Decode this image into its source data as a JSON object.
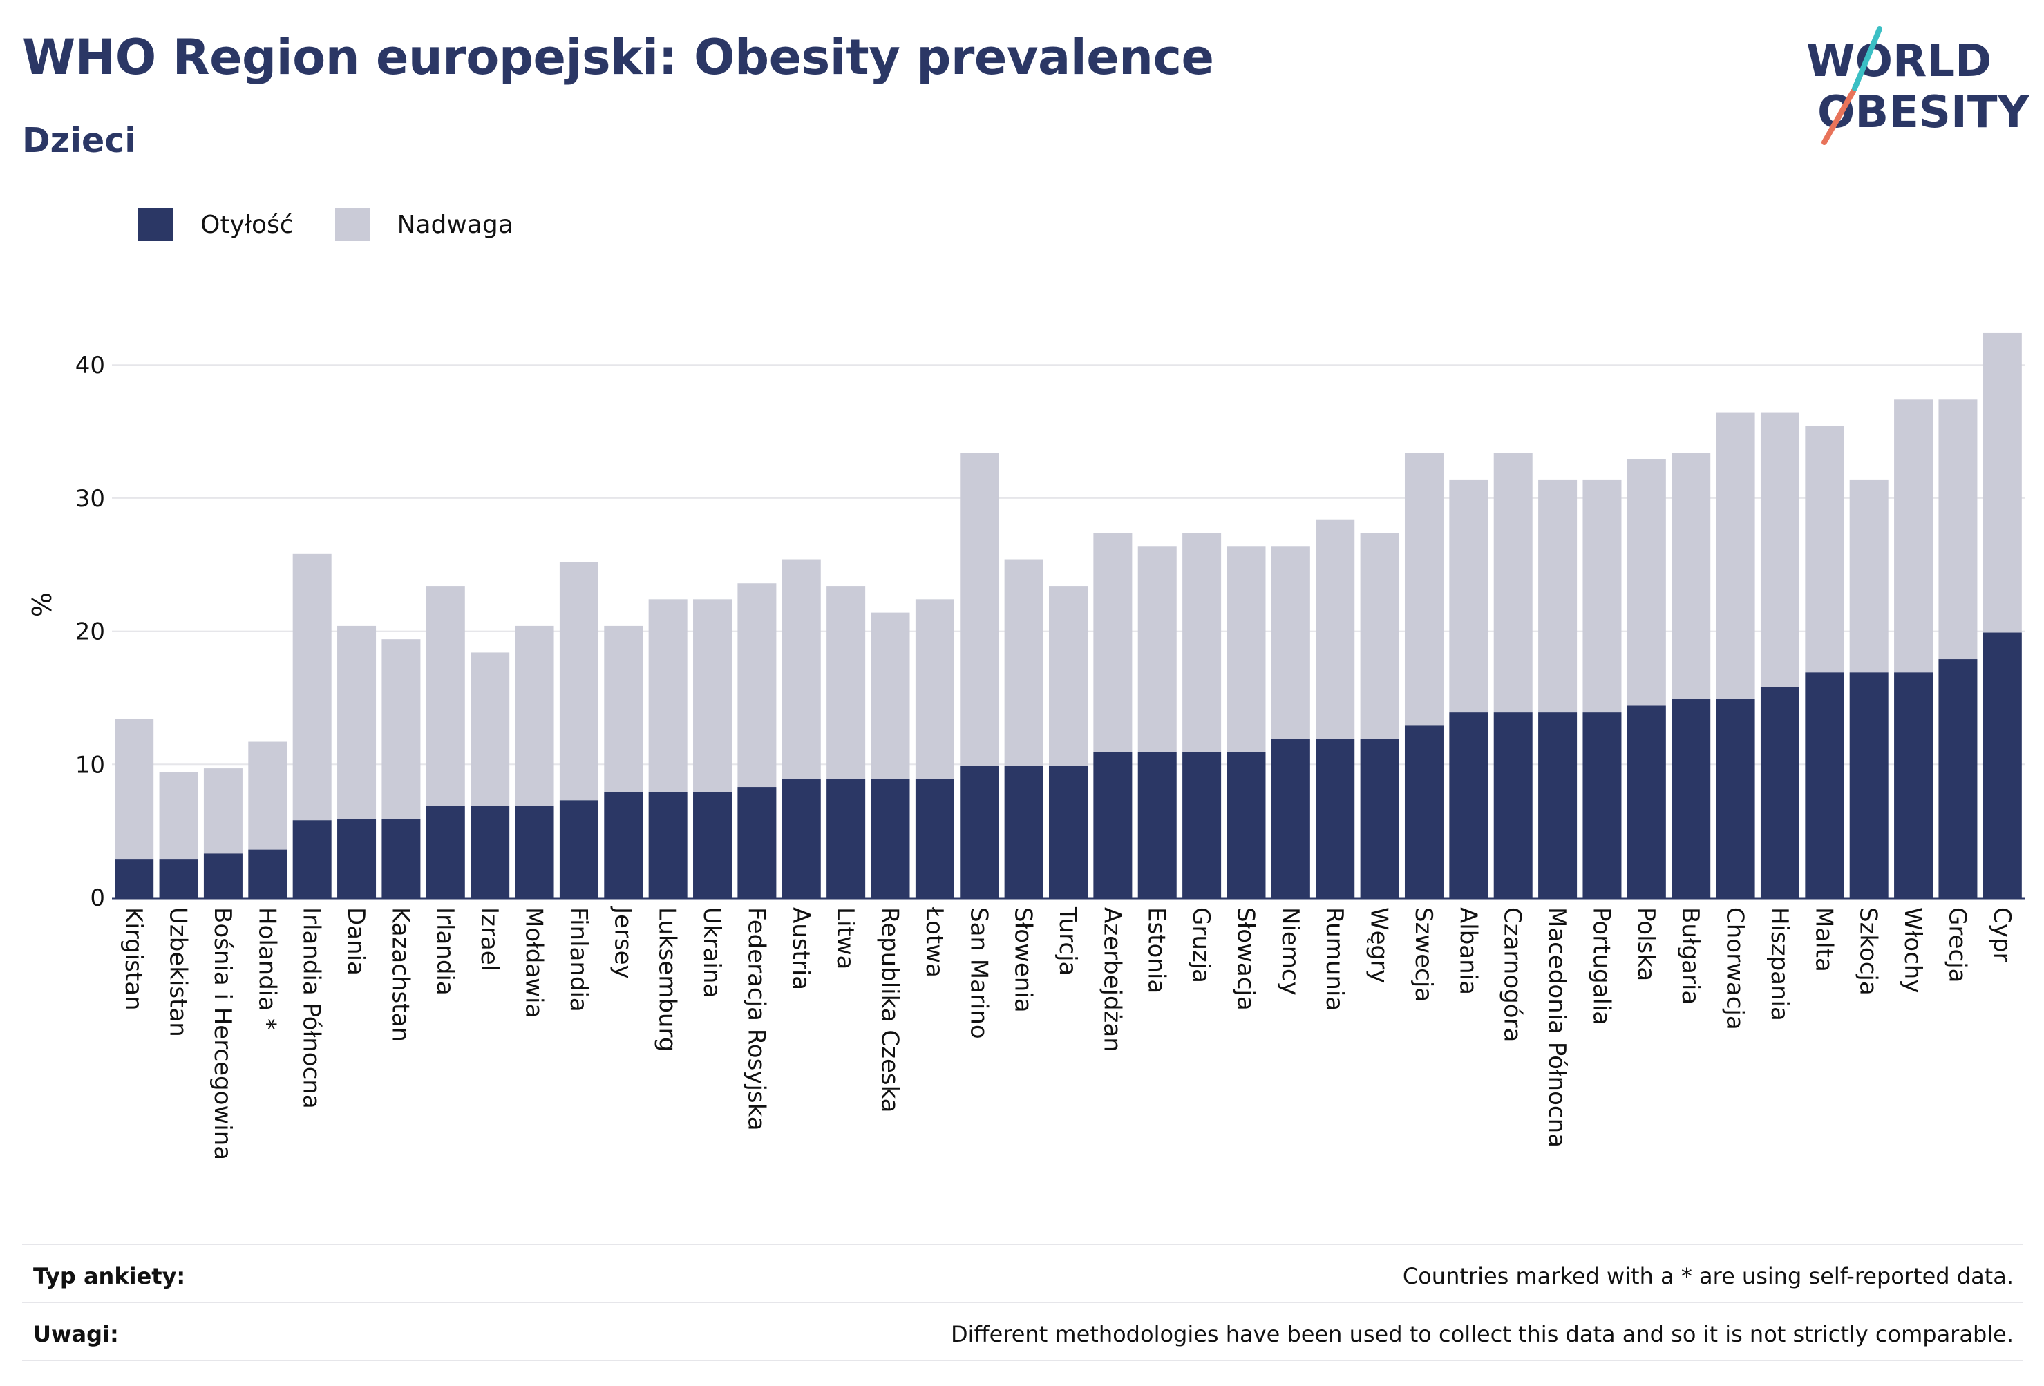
{
  "header": {
    "title": "WHO Region europejski: Obesity prevalence",
    "subtitle": "Dzieci"
  },
  "logo": {
    "line1": "WORLD",
    "line2": "OBESITY",
    "accent_teal": "#3bbfc4",
    "accent_coral": "#e8735a"
  },
  "colors": {
    "obesity": "#2b3765",
    "overweight": "#cacbd7",
    "grid": "#e6e6ea",
    "text": "#111111"
  },
  "footer": {
    "survey_label": "Typ ankiety:",
    "survey_value": "Countries marked with a * are using self-reported data.",
    "notes_label": "Uwagi:",
    "notes_value": "Different methodologies have been used to collect this data and so it is not strictly comparable."
  },
  "chart_data": {
    "type": "bar",
    "stacked": true,
    "ylabel": "%",
    "xlabel": "",
    "ylim": [
      0,
      45
    ],
    "yticks": [
      0,
      10,
      20,
      30,
      40
    ],
    "grid": true,
    "legend_position": "top-left",
    "categories": [
      "Kirgistan",
      "Uzbekistan",
      "Bośnia i Hercegowina",
      "Holandia *",
      "Irlandia Północna",
      "Dania",
      "Kazachstan",
      "Irlandia",
      "Izrael",
      "Mołdawia",
      "Finlandia",
      "Jersey",
      "Luksemburg",
      "Ukraina",
      "Federacja Rosyjska",
      "Austria",
      "Litwa",
      "Republika Czeska",
      "Łotwa",
      "San Marino",
      "Słowenia",
      "Turcja",
      "Azerbejdżan",
      "Estonia",
      "Gruzja",
      "Słowacja",
      "Niemcy",
      "Rumunia",
      "Węgry",
      "Szwecja",
      "Albania",
      "Czarnogóra",
      "Macedonia Północna",
      "Portugalia",
      "Polska",
      "Bułgaria",
      "Chorwacja",
      "Hiszpania",
      "Malta",
      "Szkocja",
      "Włochy",
      "Grecja",
      "Cypr"
    ],
    "series": [
      {
        "name": "Otyłość",
        "color": "#2b3765",
        "values": [
          2.9,
          2.9,
          3.3,
          3.6,
          5.8,
          5.9,
          5.9,
          6.9,
          6.9,
          6.9,
          7.3,
          7.9,
          7.9,
          7.9,
          8.3,
          8.9,
          8.9,
          8.9,
          8.9,
          9.9,
          9.9,
          9.9,
          10.9,
          10.9,
          10.9,
          10.9,
          11.9,
          11.9,
          11.9,
          12.9,
          13.9,
          13.9,
          13.9,
          13.9,
          14.4,
          14.9,
          14.9,
          15.8,
          16.9,
          16.9,
          16.9,
          17.9,
          19.9
        ]
      },
      {
        "name": "Nadwaga",
        "color": "#cacbd7",
        "values": [
          10.5,
          6.5,
          6.4,
          8.1,
          20.0,
          14.5,
          13.5,
          16.5,
          11.5,
          13.5,
          17.9,
          12.5,
          14.5,
          14.5,
          15.3,
          16.5,
          14.5,
          12.5,
          13.5,
          23.5,
          15.5,
          13.5,
          16.5,
          15.5,
          16.5,
          15.5,
          14.5,
          16.5,
          15.5,
          20.5,
          17.5,
          19.5,
          17.5,
          17.5,
          18.5,
          18.5,
          21.5,
          20.6,
          18.5,
          14.5,
          20.5,
          19.5,
          22.5
        ]
      }
    ]
  }
}
